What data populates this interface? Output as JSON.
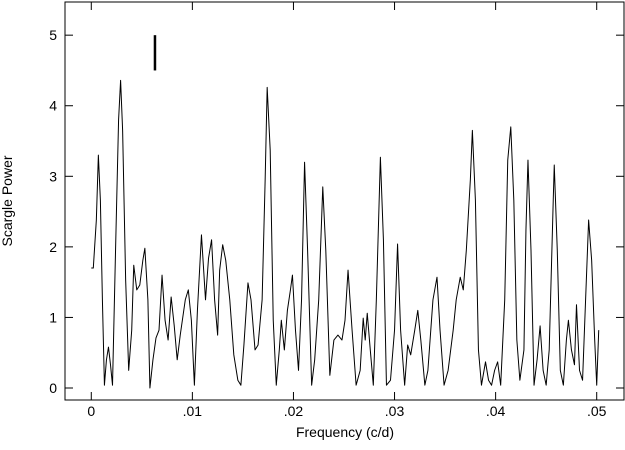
{
  "chart_data": {
    "type": "line",
    "x_label": "Frequency (c/d)",
    "y_label": "Scargle Power",
    "xlim": [
      -0.0026,
      0.0527
    ],
    "ylim": [
      -0.17,
      5.47
    ],
    "xticks": [
      0,
      {
        "value": 0.01,
        "label": ".01"
      },
      {
        "value": 0.02,
        "label": ".02"
      },
      {
        "value": 0.03,
        "label": ".03"
      },
      {
        "value": 0.04,
        "label": ".04"
      },
      {
        "value": 0.05,
        "label": ".05"
      }
    ],
    "yticks": [
      0,
      1,
      2,
      3,
      4,
      5
    ],
    "grid": false,
    "color": "#000000",
    "annotations": [
      {
        "x": 0.0063,
        "y": [
          4.5,
          5.0
        ]
      }
    ],
    "x": [
      0,
      0.0002,
      0.0005,
      0.0007,
      0.0009,
      0.0011,
      0.0013,
      0.0015,
      0.0017,
      0.0019,
      0.0021,
      0.0024,
      0.0027,
      0.0029,
      0.0031,
      0.0034,
      0.0037,
      0.004,
      0.0042,
      0.0045,
      0.0048,
      0.0051,
      0.0053,
      0.0056,
      0.0058,
      0.0061,
      0.0064,
      0.0067,
      0.007,
      0.0073,
      0.0076,
      0.0079,
      0.0082,
      0.0085,
      0.0088,
      0.0093,
      0.0096,
      0.0099,
      0.0102,
      0.0105,
      0.0109,
      0.0113,
      0.0116,
      0.0119,
      0.0122,
      0.0125,
      0.0127,
      0.013,
      0.0133,
      0.0137,
      0.0141,
      0.0145,
      0.0148,
      0.0151,
      0.0155,
      0.0158,
      0.0162,
      0.0165,
      0.0169,
      0.0172,
      0.0174,
      0.0177,
      0.018,
      0.0183,
      0.0186,
      0.0188,
      0.0191,
      0.0194,
      0.0197,
      0.0199,
      0.0202,
      0.0205,
      0.0208,
      0.0211,
      0.0214,
      0.0218,
      0.0221,
      0.0225,
      0.0229,
      0.0232,
      0.0236,
      0.024,
      0.0244,
      0.0248,
      0.0251,
      0.0254,
      0.0258,
      0.0262,
      0.0266,
      0.0269,
      0.0271,
      0.0273,
      0.0276,
      0.0279,
      0.0282,
      0.0286,
      0.0289,
      0.0292,
      0.0296,
      0.03,
      0.0303,
      0.0306,
      0.031,
      0.0313,
      0.0316,
      0.032,
      0.0323,
      0.0326,
      0.033,
      0.0333,
      0.0338,
      0.0342,
      0.0345,
      0.0349,
      0.0353,
      0.0358,
      0.0361,
      0.0365,
      0.0368,
      0.0371,
      0.0375,
      0.0377,
      0.038,
      0.0383,
      0.0386,
      0.039,
      0.0393,
      0.0396,
      0.0399,
      0.0402,
      0.0405,
      0.0409,
      0.0412,
      0.0415,
      0.0418,
      0.0421,
      0.0424,
      0.0428,
      0.043,
      0.0432,
      0.0435,
      0.0438,
      0.0441,
      0.0444,
      0.0447,
      0.045,
      0.0453,
      0.0457,
      0.0458,
      0.0461,
      0.0464,
      0.0467,
      0.047,
      0.0472,
      0.0475,
      0.0478,
      0.048,
      0.0483,
      0.0486,
      0.0489,
      0.0492,
      0.0495,
      0.0498,
      0.05,
      0.0502
    ],
    "values": [
      1.7,
      1.7,
      2.38,
      3.3,
      2.66,
      1.25,
      0.04,
      0.4,
      0.58,
      0.33,
      0.04,
      1.95,
      3.8,
      4.36,
      3.65,
      1.53,
      0.25,
      0.82,
      1.74,
      1.39,
      1.46,
      1.81,
      1.98,
      1.25,
      0,
      0.4,
      0.71,
      0.82,
      1.6,
      0.96,
      0.68,
      1.29,
      0.89,
      0.4,
      0.75,
      1.25,
      1.39,
      0.96,
      0.04,
      1.1,
      2.17,
      1.25,
      1.84,
      2.1,
      1.25,
      0.75,
      1.67,
      2.03,
      1.81,
      1.25,
      0.47,
      0.11,
      0.04,
      0.61,
      1.49,
      1.25,
      0.54,
      0.61,
      1.25,
      2.95,
      4.26,
      3.37,
      0.96,
      0.04,
      0.54,
      0.96,
      0.54,
      1.1,
      1.39,
      1.6,
      0.82,
      0.25,
      1.25,
      3.2,
      1.95,
      0.04,
      0.4,
      1.25,
      2.85,
      1.95,
      0.18,
      0.68,
      0.75,
      0.68,
      0.96,
      1.67,
      0.82,
      0.04,
      0.25,
      0.99,
      0.68,
      1.06,
      0.54,
      0.04,
      1.25,
      3.27,
      2.1,
      0.04,
      0.11,
      0.82,
      2.04,
      0.82,
      0.04,
      0.61,
      0.47,
      0.82,
      1.1,
      0.68,
      0.04,
      0.25,
      1.25,
      1.57,
      0.82,
      0.04,
      0.25,
      0.82,
      1.25,
      1.57,
      1.39,
      1.95,
      2.95,
      3.65,
      2.66,
      0.54,
      0.04,
      0.37,
      0.11,
      0.04,
      0.25,
      0.37,
      0.04,
      1.25,
      3.23,
      3.7,
      2.66,
      0.68,
      0.11,
      0.54,
      2.24,
      3.23,
      1.95,
      0.04,
      0.4,
      0.88,
      0.25,
      0.04,
      0.54,
      2.66,
      3.16,
      1.95,
      0.25,
      0.04,
      0.68,
      0.96,
      0.54,
      0.33,
      1.18,
      0.25,
      0.11,
      1.25,
      2.38,
      1.81,
      0.68,
      0.04,
      0.82
    ]
  }
}
